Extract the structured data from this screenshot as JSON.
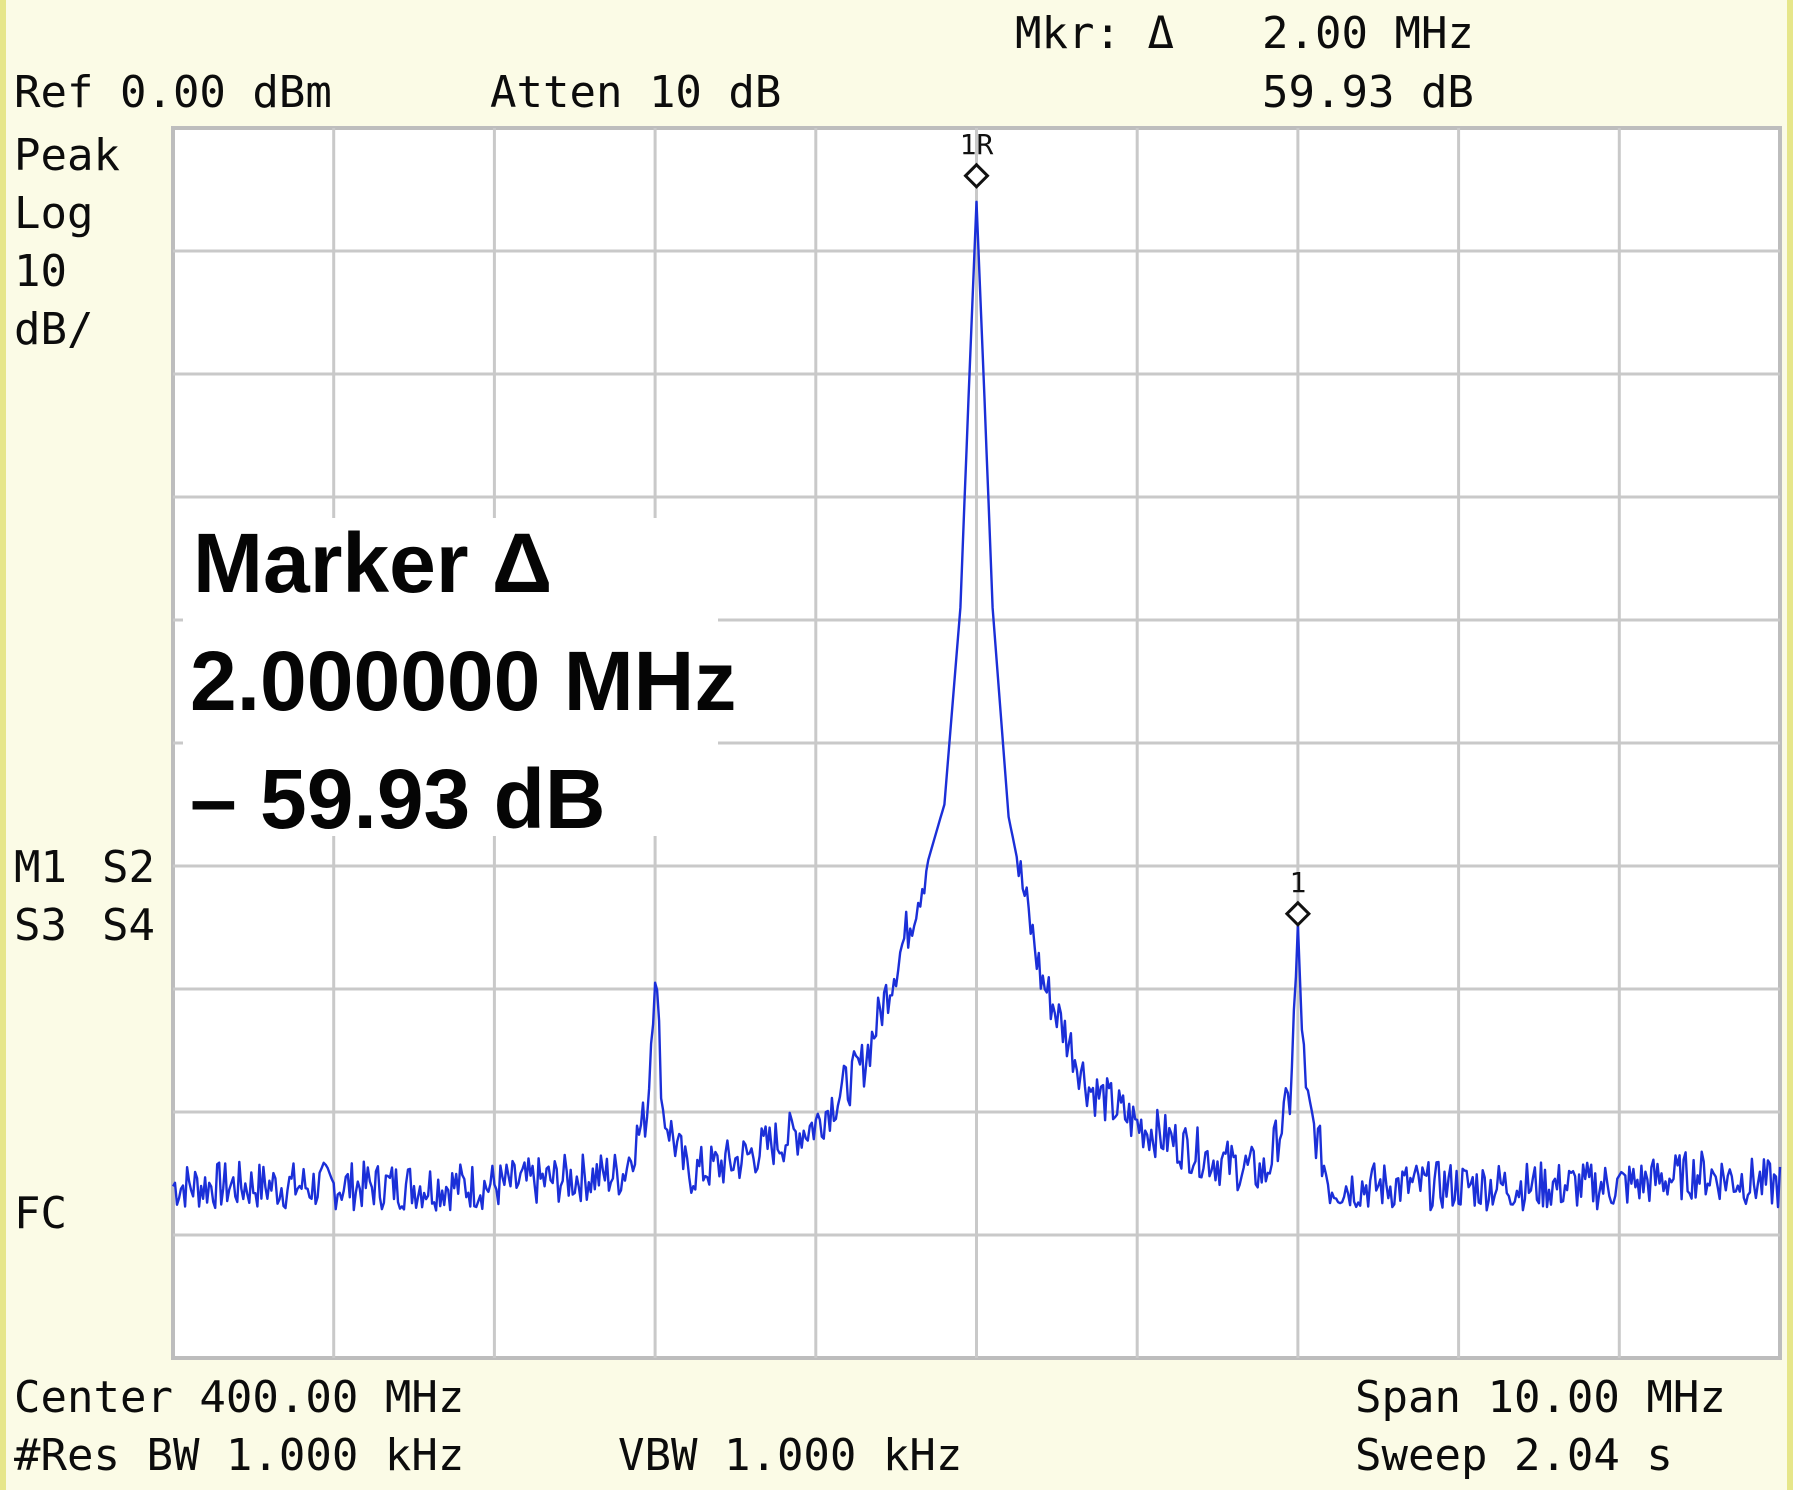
{
  "header": {
    "ref_label": "Ref 0.00 dBm",
    "atten_label": "Atten 10 dB",
    "mkr_label": "Mkr: Δ",
    "mkr_freq": "2.00 MHz",
    "mkr_amp": "59.93 dB"
  },
  "scale": {
    "detector": "Peak",
    "scale_type": "Log",
    "per_div_value": "10",
    "per_div_unit": "dB/"
  },
  "trace_legend": {
    "m1": "M1",
    "s2": "S2",
    "s3": "S3",
    "s4": "S4",
    "m1_color": "#1b2fd8",
    "s2_color": "#b040e8",
    "s3_color": "#c03030",
    "s4_color": "#30d030"
  },
  "coupling_label": "FC",
  "marker_box": {
    "line1": "Marker Δ",
    "line2": "2.000000 MHz",
    "line3": "– 59.93 dB"
  },
  "footer": {
    "center_label": "Center 400.00 MHz",
    "rbw_label": "#Res BW 1.000 kHz",
    "vbw_label": "VBW 1.000 kHz",
    "span_label": "Span 10.00 MHz",
    "sweep_label": "Sweep 2.04 s"
  },
  "colors": {
    "trace": "#1b2fd8",
    "grid": "#c9c9c9",
    "background": "#fbfbe6",
    "plot_background": "#ffffff"
  },
  "chart_data": {
    "type": "line",
    "x_unit": "MHz",
    "y_unit": "dBm",
    "xlim": [
      395,
      405
    ],
    "ylim": [
      -100,
      0
    ],
    "grid": true,
    "divisions_x": 10,
    "divisions_y": 10,
    "series": [
      {
        "x": [
          395.0,
          396.0,
          397.0,
          397.8,
          397.95,
          398.0,
          398.05,
          398.2,
          398.5,
          399.0,
          399.3,
          399.6,
          399.8,
          399.9,
          399.95,
          400.0,
          400.05,
          400.1,
          400.2,
          400.4,
          400.7,
          401.0,
          401.5,
          401.8,
          401.95,
          402.0,
          402.05,
          402.2,
          403.0,
          404.0,
          404.5,
          405.0
        ],
        "y": [
          -86,
          -86,
          -86,
          -85,
          -80,
          -68,
          -80,
          -85,
          -84,
          -81,
          -76,
          -64,
          -55,
          -39,
          -22,
          -6,
          -22,
          -39,
          -56,
          -69,
          -78,
          -81,
          -84,
          -85,
          -79,
          -66,
          -79,
          -86,
          -86,
          -86,
          -85,
          -86
        ]
      }
    ],
    "markers": [
      {
        "label": "1R",
        "x": 400.0,
        "y": -6
      },
      {
        "label": "1",
        "x": 402.0,
        "y": -66
      }
    ]
  }
}
